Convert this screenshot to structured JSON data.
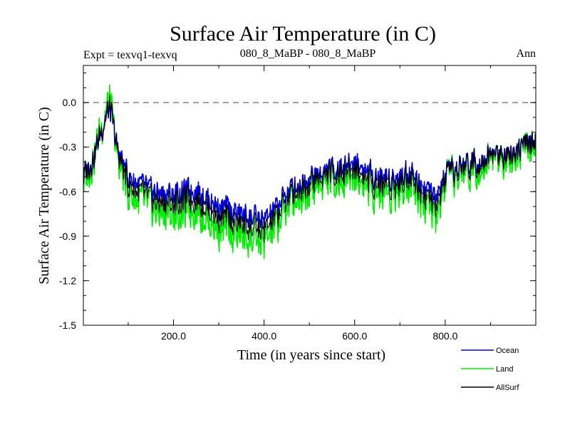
{
  "chart_data": {
    "type": "line",
    "title": "Surface Air Temperature (in C)",
    "subtitle_left": "Expt = texvq1-texvq",
    "subtitle_center": "080_8_MaBP - 080_8_MaBP",
    "subtitle_right": "Ann",
    "xlabel": "Time (in years since start)",
    "ylabel": "Surface Air Temperature (in C)",
    "xlim": [
      1,
      1000
    ],
    "ylim": [
      -1.5,
      0.25
    ],
    "xticks": [
      200,
      400,
      600,
      800
    ],
    "xtick_labels": [
      "200.0",
      "400.0",
      "600.0",
      "800.0"
    ],
    "yticks": [
      0.0,
      -0.3,
      -0.6,
      -0.9,
      -1.2,
      -1.5
    ],
    "ytick_labels": [
      "0.0",
      "-0.3",
      "-0.6",
      "-0.9",
      "-1.2",
      "-1.5"
    ],
    "reference_line_y": 0.0,
    "anchor_years": [
      0,
      25,
      50,
      60,
      75,
      100,
      150,
      200,
      250,
      300,
      350,
      400,
      425,
      450,
      475,
      500,
      550,
      600,
      625,
      650,
      700,
      720,
      750,
      780,
      800,
      850,
      900,
      950,
      1000
    ],
    "series": [
      {
        "name": "Ocean",
        "color": "#0000dd",
        "anchor_values": [
          -0.5,
          -0.35,
          -0.1,
          -0.05,
          -0.3,
          -0.5,
          -0.6,
          -0.62,
          -0.58,
          -0.7,
          -0.75,
          -0.8,
          -0.72,
          -0.6,
          -0.55,
          -0.5,
          -0.45,
          -0.4,
          -0.45,
          -0.5,
          -0.5,
          -0.45,
          -0.55,
          -0.65,
          -0.5,
          -0.4,
          -0.35,
          -0.32,
          -0.25
        ],
        "noise_amplitude": 0.12
      },
      {
        "name": "Land",
        "color": "#00ee00",
        "anchor_values": [
          -0.55,
          -0.35,
          -0.05,
          0.0,
          -0.35,
          -0.6,
          -0.72,
          -0.75,
          -0.7,
          -0.85,
          -0.9,
          -0.95,
          -0.85,
          -0.7,
          -0.62,
          -0.58,
          -0.52,
          -0.5,
          -0.55,
          -0.6,
          -0.58,
          -0.52,
          -0.65,
          -0.8,
          -0.55,
          -0.45,
          -0.38,
          -0.35,
          -0.28
        ],
        "noise_amplitude": 0.2
      },
      {
        "name": "AllSurf",
        "color": "#000000",
        "anchor_values": [
          -0.52,
          -0.35,
          -0.08,
          -0.03,
          -0.32,
          -0.55,
          -0.66,
          -0.68,
          -0.64,
          -0.77,
          -0.82,
          -0.87,
          -0.78,
          -0.65,
          -0.58,
          -0.54,
          -0.48,
          -0.45,
          -0.5,
          -0.55,
          -0.54,
          -0.48,
          -0.6,
          -0.72,
          -0.52,
          -0.42,
          -0.36,
          -0.33,
          -0.26
        ],
        "noise_amplitude": 0.14
      }
    ],
    "legend_order": [
      "Ocean",
      "Land",
      "AllSurf"
    ]
  }
}
